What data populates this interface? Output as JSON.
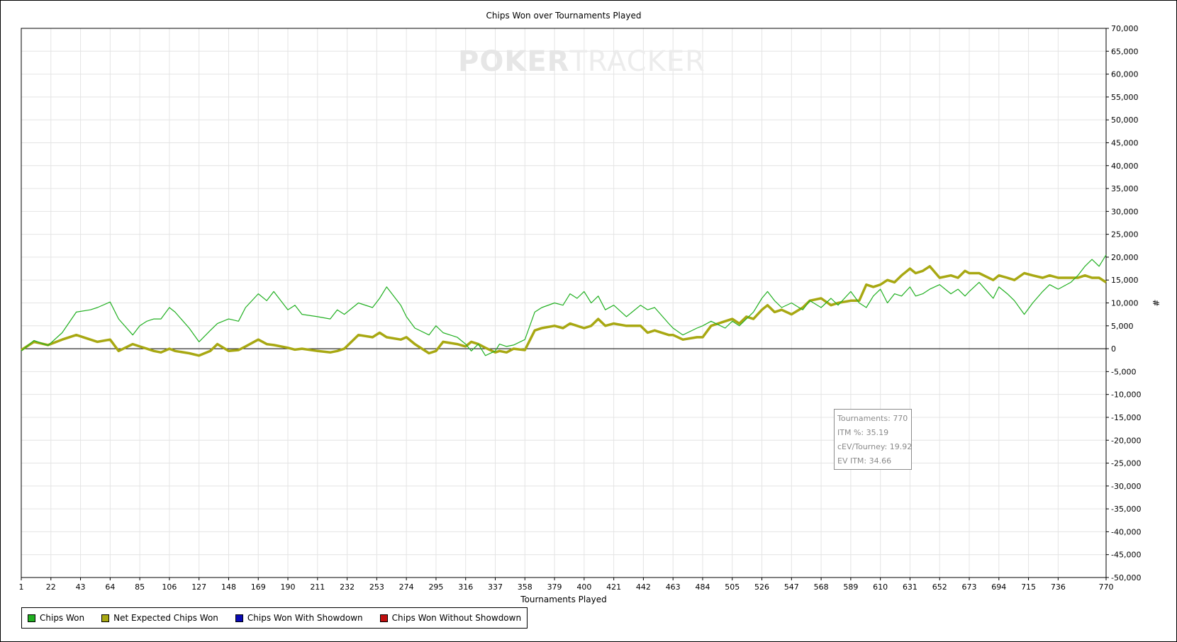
{
  "colors": {
    "chips_won": "#22b022",
    "net_expected": "#a8a812",
    "with_showdown": "#0a0ab4",
    "without_showdown": "#c01010",
    "grid": "#e4e4e4",
    "zero_line": "#000000"
  },
  "watermark": {
    "part1": "POKER",
    "part2": "TRACKER"
  },
  "stats": {
    "tournaments_label": "Tournaments:",
    "tournaments_value": "770",
    "itm_label": "ITM %:",
    "itm_value": "35.19",
    "cev_label": "cEV/Tourney:",
    "cev_value": "19.92",
    "ev_itm_label": "EV ITM:",
    "ev_itm_value": "34.66"
  },
  "legend": [
    {
      "name": "Chips Won",
      "color": "#22b022"
    },
    {
      "name": "Net Expected Chips Won",
      "color": "#a8a812"
    },
    {
      "name": "Chips Won With Showdown",
      "color": "#0a0ab4"
    },
    {
      "name": "Chips Won Without Showdown",
      "color": "#c01010"
    }
  ],
  "chart_data": {
    "type": "line",
    "title": "Chips Won over Tournaments Played",
    "xlabel": "Tournaments Played",
    "ylabel": "#",
    "xlim": [
      1,
      770
    ],
    "ylim": [
      -50000,
      70000
    ],
    "x_ticks": [
      1,
      22,
      43,
      64,
      85,
      106,
      127,
      148,
      169,
      190,
      211,
      232,
      253,
      274,
      295,
      316,
      337,
      358,
      379,
      400,
      421,
      442,
      463,
      484,
      505,
      526,
      547,
      568,
      589,
      610,
      631,
      652,
      673,
      694,
      715,
      736,
      770
    ],
    "y_ticks": [
      {
        "v": 70000,
        "t": "70,000"
      },
      {
        "v": 65000,
        "t": "65,000"
      },
      {
        "v": 60000,
        "t": "60,000"
      },
      {
        "v": 55000,
        "t": "55,000"
      },
      {
        "v": 50000,
        "t": "50,000"
      },
      {
        "v": 45000,
        "t": "45,000"
      },
      {
        "v": 40000,
        "t": "40,000"
      },
      {
        "v": 35000,
        "t": "35,000"
      },
      {
        "v": 30000,
        "t": "30,000"
      },
      {
        "v": 25000,
        "t": "25,000"
      },
      {
        "v": 20000,
        "t": "20,000"
      },
      {
        "v": 15000,
        "t": "15,000"
      },
      {
        "v": 10000,
        "t": "10,000"
      },
      {
        "v": 5000,
        "t": "5,000"
      },
      {
        "v": 0,
        "t": "0"
      },
      {
        "v": -5000,
        "t": "-5,000"
      },
      {
        "v": -10000,
        "t": "-10,000"
      },
      {
        "v": -15000,
        "t": "-15,000"
      },
      {
        "v": -20000,
        "t": "-20,000"
      },
      {
        "v": -25000,
        "t": "-25,000"
      },
      {
        "v": -30000,
        "t": "-30,000"
      },
      {
        "v": -35000,
        "t": "-35,000"
      },
      {
        "v": -40000,
        "t": "-40,000"
      },
      {
        "v": -45000,
        "t": "-45,000"
      },
      {
        "v": -50000,
        "t": "-50,000"
      }
    ],
    "grid": true,
    "legend_position": "bottom-left",
    "series": [
      {
        "name": "Chips Won",
        "color": "#22b022",
        "x": [
          1,
          10,
          20,
          30,
          40,
          50,
          55,
          64,
          70,
          80,
          85,
          90,
          95,
          100,
          106,
          110,
          120,
          127,
          135,
          140,
          148,
          155,
          160,
          169,
          175,
          180,
          190,
          195,
          200,
          211,
          220,
          225,
          230,
          240,
          250,
          255,
          260,
          270,
          274,
          280,
          290,
          295,
          300,
          310,
          316,
          320,
          325,
          330,
          337,
          340,
          345,
          350,
          358,
          365,
          370,
          379,
          385,
          390,
          395,
          400,
          405,
          410,
          415,
          421,
          430,
          440,
          445,
          450,
          460,
          463,
          470,
          480,
          484,
          490,
          500,
          505,
          510,
          515,
          520,
          526,
          530,
          535,
          540,
          547,
          555,
          560,
          568,
          575,
          580,
          589,
          595,
          600,
          605,
          610,
          615,
          620,
          625,
          631,
          635,
          640,
          645,
          652,
          660,
          665,
          670,
          673,
          680,
          690,
          694,
          700,
          705,
          712,
          718,
          725,
          730,
          736,
          745,
          750,
          755,
          760,
          765,
          770
        ],
        "y": [
          -500,
          1800,
          700,
          3500,
          8000,
          8500,
          9000,
          10200,
          6500,
          3000,
          5000,
          6000,
          6500,
          6500,
          9000,
          8000,
          4500,
          1500,
          4000,
          5500,
          6500,
          6000,
          9000,
          12000,
          10500,
          12500,
          8500,
          9500,
          7500,
          7000,
          6500,
          8500,
          7500,
          10000,
          9000,
          11000,
          13500,
          9500,
          7000,
          4500,
          3000,
          5000,
          3500,
          2500,
          1000,
          -500,
          1000,
          -1500,
          -500,
          1000,
          500,
          800,
          2000,
          8000,
          9000,
          10000,
          9500,
          12000,
          11000,
          12500,
          10000,
          11500,
          8500,
          9500,
          7000,
          9500,
          8500,
          9000,
          5500,
          4500,
          3000,
          4500,
          5000,
          6000,
          4500,
          6000,
          5000,
          6500,
          8000,
          11000,
          12500,
          10500,
          9000,
          10000,
          8500,
          10500,
          9000,
          11000,
          9500,
          12500,
          10000,
          9000,
          11500,
          13000,
          10000,
          12000,
          11500,
          13500,
          11500,
          12000,
          13000,
          14000,
          12000,
          13000,
          11500,
          12500,
          14500,
          11000,
          13500,
          12000,
          10500,
          7500,
          10000,
          12500,
          14000,
          13000,
          14500,
          16000,
          18000,
          19500,
          18000,
          20500
        ]
      },
      {
        "name": "Net Expected Chips Won",
        "color": "#a8a812",
        "x": [
          1,
          10,
          20,
          30,
          40,
          50,
          55,
          64,
          70,
          80,
          85,
          90,
          95,
          100,
          106,
          110,
          120,
          127,
          135,
          140,
          148,
          155,
          160,
          169,
          175,
          180,
          190,
          195,
          200,
          211,
          220,
          225,
          230,
          240,
          250,
          255,
          260,
          270,
          274,
          280,
          290,
          295,
          300,
          310,
          316,
          320,
          325,
          330,
          337,
          340,
          345,
          350,
          358,
          365,
          370,
          379,
          385,
          390,
          395,
          400,
          405,
          410,
          415,
          421,
          430,
          440,
          445,
          450,
          460,
          463,
          470,
          480,
          484,
          490,
          500,
          505,
          510,
          515,
          520,
          526,
          530,
          535,
          540,
          547,
          555,
          560,
          568,
          575,
          580,
          589,
          595,
          600,
          605,
          610,
          615,
          620,
          625,
          631,
          635,
          640,
          645,
          652,
          660,
          665,
          670,
          673,
          680,
          690,
          694,
          700,
          705,
          712,
          718,
          725,
          730,
          736,
          745,
          750,
          755,
          760,
          765,
          770
        ],
        "y": [
          -300,
          1500,
          800,
          2000,
          3000,
          2000,
          1500,
          2000,
          -500,
          1000,
          500,
          0,
          -500,
          -800,
          0,
          -500,
          -1000,
          -1500,
          -500,
          1000,
          -500,
          -300,
          500,
          2000,
          1000,
          800,
          200,
          -200,
          0,
          -500,
          -800,
          -500,
          0,
          3000,
          2500,
          3500,
          2500,
          2000,
          2500,
          1000,
          -1000,
          -500,
          1500,
          1000,
          500,
          1500,
          1000,
          200,
          -800,
          -500,
          -800,
          0,
          -300,
          4000,
          4500,
          5000,
          4500,
          5500,
          5000,
          4500,
          5000,
          6500,
          5000,
          5500,
          5000,
          5000,
          3500,
          4000,
          3000,
          3000,
          2000,
          2500,
          2500,
          5000,
          6000,
          6500,
          5500,
          7000,
          6500,
          8500,
          9500,
          8000,
          8500,
          7500,
          9000,
          10500,
          11000,
          9500,
          10000,
          10500,
          10500,
          14000,
          13500,
          14000,
          15000,
          14500,
          16000,
          17500,
          16500,
          17000,
          18000,
          15500,
          16000,
          15500,
          17000,
          16500,
          16500,
          15000,
          16000,
          15500,
          15000,
          16500,
          16000,
          15500,
          16000,
          15500,
          15500,
          15500,
          16000,
          15500,
          15500,
          14500
        ]
      },
      {
        "name": "Chips Won With Showdown",
        "color": "#0a0ab4",
        "x": [],
        "y": []
      },
      {
        "name": "Chips Won Without Showdown",
        "color": "#c01010",
        "x": [],
        "y": []
      }
    ]
  }
}
